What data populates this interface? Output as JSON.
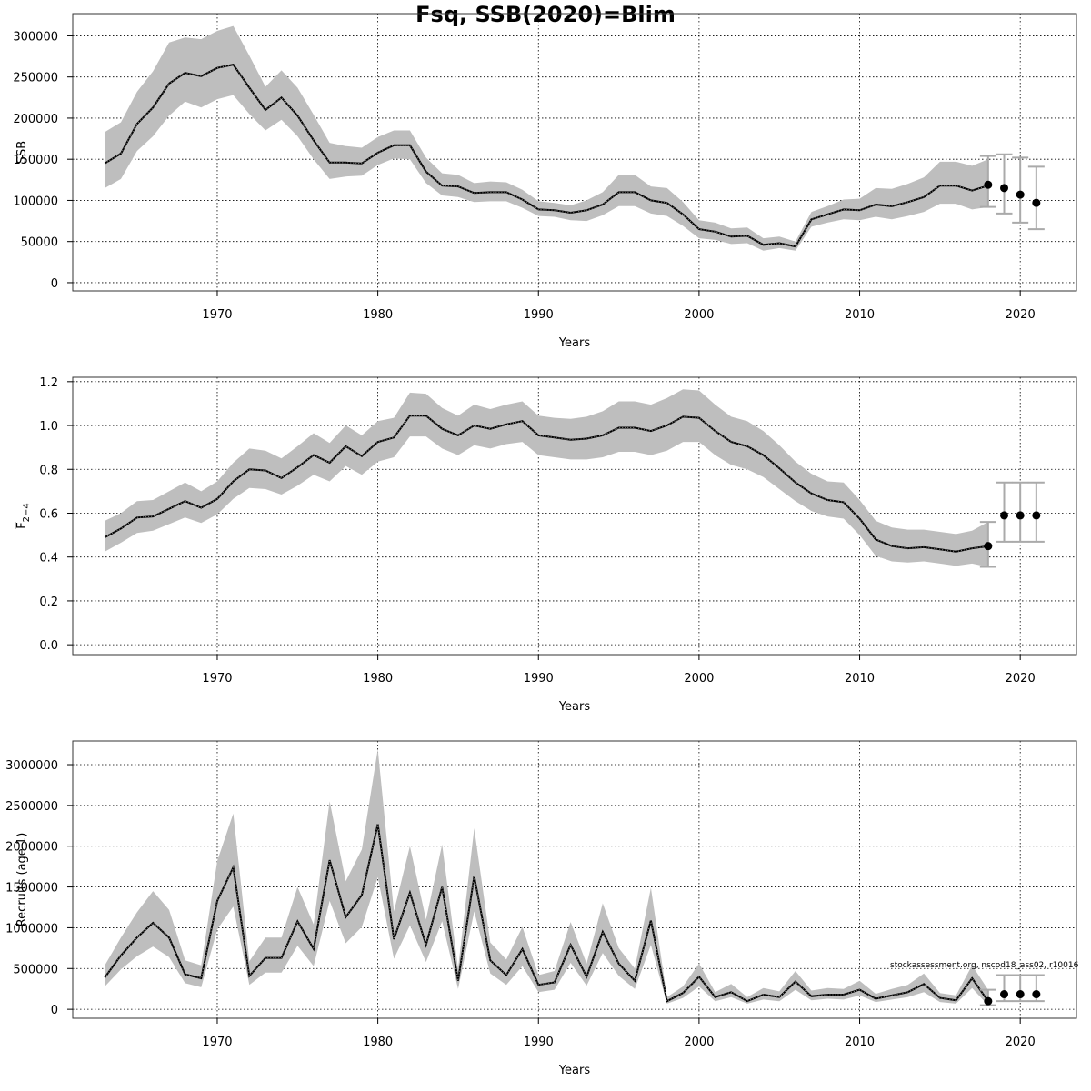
{
  "title": "Fsq, SSB(2020)=Blim",
  "credit": "stockassessment.org, nscod18_ass02, r10016",
  "chart_data": [
    {
      "type": "line",
      "ylabel": "SSB",
      "xlabel": "Years",
      "xlim": [
        1961,
        2023.5
      ],
      "ylim": [
        -10000,
        327000
      ],
      "xticks": [
        1970,
        1980,
        1990,
        2000,
        2010,
        2020
      ],
      "yticks": [
        0,
        50000,
        100000,
        150000,
        200000,
        250000,
        300000
      ],
      "ytick_labels": [
        "0",
        "50000",
        "100000",
        "150000",
        "200000",
        "250000",
        "300000"
      ],
      "grid": true,
      "x": [
        1963,
        1964,
        1965,
        1966,
        1967,
        1968,
        1969,
        1970,
        1971,
        1972,
        1973,
        1974,
        1975,
        1976,
        1977,
        1978,
        1979,
        1980,
        1981,
        1982,
        1983,
        1984,
        1985,
        1986,
        1987,
        1988,
        1989,
        1990,
        1991,
        1992,
        1993,
        1994,
        1995,
        1996,
        1997,
        1998,
        1999,
        2000,
        2001,
        2002,
        2003,
        2004,
        2005,
        2006,
        2007,
        2008,
        2009,
        2010,
        2011,
        2012,
        2013,
        2014,
        2015,
        2016,
        2017,
        2018
      ],
      "estimate": [
        145000,
        157000,
        193000,
        213000,
        242000,
        255000,
        251000,
        261000,
        265000,
        237000,
        210000,
        225000,
        203000,
        173000,
        146000,
        146000,
        145000,
        158000,
        167000,
        167000,
        135000,
        118000,
        117000,
        109000,
        110000,
        110000,
        101000,
        89000,
        88000,
        85000,
        88000,
        95000,
        110000,
        110000,
        100000,
        97000,
        83000,
        65000,
        62000,
        56000,
        57000,
        46000,
        48000,
        44000,
        77000,
        83000,
        89000,
        88000,
        95000,
        93000,
        98000,
        104000,
        118000,
        118000,
        112000,
        118000
      ],
      "upper": [
        183000,
        195000,
        232000,
        257000,
        292000,
        298000,
        296000,
        306000,
        312000,
        276000,
        238000,
        258000,
        237000,
        204000,
        170000,
        166000,
        164000,
        177000,
        185000,
        185000,
        152000,
        133000,
        131000,
        121000,
        123000,
        122000,
        113000,
        99000,
        97000,
        94000,
        100000,
        110000,
        131000,
        131000,
        117000,
        115000,
        98000,
        76000,
        73000,
        66000,
        67000,
        54000,
        56000,
        50000,
        86000,
        93000,
        101000,
        102000,
        115000,
        114000,
        120000,
        128000,
        147000,
        147000,
        142000,
        150000
      ],
      "lower": [
        115000,
        126000,
        160000,
        178000,
        203000,
        220000,
        213000,
        223000,
        228000,
        205000,
        185000,
        198000,
        178000,
        150000,
        126000,
        129000,
        130000,
        143000,
        151000,
        150000,
        121000,
        106000,
        104000,
        98000,
        99000,
        99000,
        91000,
        81000,
        80000,
        76000,
        75000,
        82000,
        93000,
        93000,
        84000,
        81000,
        69000,
        54000,
        52000,
        47000,
        48000,
        39000,
        42000,
        39000,
        68000,
        73000,
        77000,
        76000,
        80000,
        77000,
        81000,
        86000,
        96000,
        96000,
        89000,
        92000
      ],
      "forecast": [
        {
          "x": 2018,
          "value": 119000,
          "lower": 92000,
          "upper": 154000
        },
        {
          "x": 2019,
          "value": 115000,
          "lower": 84000,
          "upper": 156000
        },
        {
          "x": 2020,
          "value": 107000,
          "lower": 73000,
          "upper": 152000
        },
        {
          "x": 2021,
          "value": 97000,
          "lower": 65000,
          "upper": 141000
        }
      ]
    },
    {
      "type": "line",
      "ylabel": "F̄2−4",
      "ylabel_main": "F",
      "ylabel_sub": "2−4",
      "xlabel": "Years",
      "xlim": [
        1961,
        2023.5
      ],
      "ylim": [
        -0.045,
        1.22
      ],
      "xticks": [
        1970,
        1980,
        1990,
        2000,
        2010,
        2020
      ],
      "yticks": [
        0,
        0.2,
        0.4,
        0.6,
        0.8,
        1.0,
        1.2
      ],
      "ytick_labels": [
        "0.0",
        "0.2",
        "0.4",
        "0.6",
        "0.8",
        "1.0",
        "1.2"
      ],
      "grid": true,
      "x": [
        1963,
        1964,
        1965,
        1966,
        1967,
        1968,
        1969,
        1970,
        1971,
        1972,
        1973,
        1974,
        1975,
        1976,
        1977,
        1978,
        1979,
        1980,
        1981,
        1982,
        1983,
        1984,
        1985,
        1986,
        1987,
        1988,
        1989,
        1990,
        1991,
        1992,
        1993,
        1994,
        1995,
        1996,
        1997,
        1998,
        1999,
        2000,
        2001,
        2002,
        2003,
        2004,
        2005,
        2006,
        2007,
        2008,
        2009,
        2010,
        2011,
        2012,
        2013,
        2014,
        2015,
        2016,
        2017,
        2018
      ],
      "estimate": [
        0.49,
        0.53,
        0.58,
        0.585,
        0.62,
        0.655,
        0.625,
        0.665,
        0.745,
        0.8,
        0.795,
        0.76,
        0.81,
        0.865,
        0.83,
        0.905,
        0.86,
        0.925,
        0.945,
        1.045,
        1.045,
        0.985,
        0.955,
        1.0,
        0.985,
        1.005,
        1.02,
        0.955,
        0.945,
        0.935,
        0.94,
        0.955,
        0.99,
        0.99,
        0.975,
        1.0,
        1.04,
        1.035,
        0.975,
        0.925,
        0.905,
        0.865,
        0.805,
        0.74,
        0.69,
        0.66,
        0.65,
        0.575,
        0.48,
        0.45,
        0.44,
        0.445,
        0.435,
        0.425,
        0.44,
        0.45
      ],
      "upper": [
        0.565,
        0.6,
        0.655,
        0.66,
        0.7,
        0.74,
        0.7,
        0.745,
        0.83,
        0.895,
        0.885,
        0.85,
        0.905,
        0.965,
        0.92,
        1.0,
        0.955,
        1.02,
        1.035,
        1.15,
        1.145,
        1.08,
        1.045,
        1.095,
        1.075,
        1.095,
        1.11,
        1.045,
        1.035,
        1.03,
        1.04,
        1.065,
        1.11,
        1.11,
        1.095,
        1.125,
        1.165,
        1.16,
        1.095,
        1.04,
        1.02,
        0.975,
        0.91,
        0.835,
        0.78,
        0.745,
        0.74,
        0.66,
        0.565,
        0.535,
        0.525,
        0.525,
        0.515,
        0.505,
        0.52,
        0.56
      ],
      "lower": [
        0.425,
        0.465,
        0.51,
        0.52,
        0.55,
        0.58,
        0.555,
        0.595,
        0.665,
        0.715,
        0.71,
        0.685,
        0.725,
        0.775,
        0.745,
        0.815,
        0.775,
        0.835,
        0.855,
        0.95,
        0.95,
        0.895,
        0.865,
        0.91,
        0.895,
        0.915,
        0.925,
        0.865,
        0.855,
        0.845,
        0.845,
        0.855,
        0.88,
        0.88,
        0.865,
        0.885,
        0.925,
        0.925,
        0.865,
        0.82,
        0.8,
        0.765,
        0.71,
        0.655,
        0.61,
        0.585,
        0.575,
        0.5,
        0.405,
        0.38,
        0.375,
        0.38,
        0.37,
        0.36,
        0.37,
        0.355
      ],
      "forecast": [
        {
          "x": 2018,
          "value": 0.45,
          "lower": 0.355,
          "upper": 0.56
        },
        {
          "x": 2019,
          "value": 0.59,
          "lower": 0.47,
          "upper": 0.74
        },
        {
          "x": 2020,
          "value": 0.59,
          "lower": 0.47,
          "upper": 0.74
        },
        {
          "x": 2021,
          "value": 0.59,
          "lower": 0.47,
          "upper": 0.74
        }
      ]
    },
    {
      "type": "line",
      "ylabel": "Recruits (age 1)",
      "xlabel": "Years",
      "xlim": [
        1961,
        2023.5
      ],
      "ylim": [
        -110000,
        3290000
      ],
      "xticks": [
        1970,
        1980,
        1990,
        2000,
        2010,
        2020
      ],
      "yticks": [
        0,
        500000,
        1000000,
        1500000,
        2000000,
        2500000,
        3000000
      ],
      "ytick_labels": [
        "0",
        "500000",
        "1000000",
        "1500000",
        "2000000",
        "2500000",
        "3000000"
      ],
      "grid": true,
      "x": [
        1963,
        1964,
        1965,
        1966,
        1967,
        1968,
        1969,
        1970,
        1971,
        1972,
        1973,
        1974,
        1975,
        1976,
        1977,
        1978,
        1979,
        1980,
        1981,
        1982,
        1983,
        1984,
        1985,
        1986,
        1987,
        1988,
        1989,
        1990,
        1991,
        1992,
        1993,
        1994,
        1995,
        1996,
        1997,
        1998,
        1999,
        2000,
        2001,
        2002,
        2003,
        2004,
        2005,
        2006,
        2007,
        2008,
        2009,
        2010,
        2011,
        2012,
        2013,
        2014,
        2015,
        2016,
        2017,
        2018
      ],
      "estimate": [
        390000,
        660000,
        880000,
        1060000,
        880000,
        430000,
        380000,
        1330000,
        1740000,
        410000,
        630000,
        630000,
        1080000,
        740000,
        1830000,
        1130000,
        1400000,
        2270000,
        860000,
        1430000,
        790000,
        1500000,
        350000,
        1630000,
        600000,
        420000,
        740000,
        300000,
        330000,
        790000,
        400000,
        950000,
        560000,
        350000,
        1090000,
        100000,
        200000,
        400000,
        150000,
        210000,
        100000,
        180000,
        150000,
        340000,
        160000,
        180000,
        180000,
        240000,
        130000,
        170000,
        210000,
        310000,
        140000,
        110000,
        380000,
        100000
      ],
      "upper": [
        540000,
        880000,
        1190000,
        1450000,
        1220000,
        600000,
        540000,
        1820000,
        2400000,
        590000,
        880000,
        880000,
        1500000,
        1040000,
        2550000,
        1570000,
        1960000,
        3190000,
        1200000,
        2000000,
        1100000,
        2020000,
        500000,
        2220000,
        820000,
        610000,
        1010000,
        420000,
        470000,
        1070000,
        560000,
        1300000,
        750000,
        500000,
        1490000,
        150000,
        280000,
        560000,
        210000,
        310000,
        150000,
        260000,
        220000,
        470000,
        230000,
        260000,
        250000,
        350000,
        190000,
        250000,
        300000,
        440000,
        200000,
        170000,
        540000,
        240000
      ],
      "lower": [
        280000,
        490000,
        650000,
        770000,
        640000,
        320000,
        270000,
        980000,
        1260000,
        300000,
        450000,
        450000,
        780000,
        530000,
        1330000,
        810000,
        1010000,
        1620000,
        620000,
        1030000,
        580000,
        1080000,
        250000,
        1200000,
        440000,
        300000,
        530000,
        210000,
        240000,
        570000,
        290000,
        690000,
        410000,
        250000,
        790000,
        70000,
        140000,
        280000,
        100000,
        150000,
        70000,
        120000,
        100000,
        240000,
        110000,
        130000,
        120000,
        170000,
        90000,
        120000,
        150000,
        210000,
        90000,
        70000,
        260000,
        50000
      ],
      "forecast": [
        {
          "x": 2018,
          "value": 100000,
          "lower": 50000,
          "upper": 240000
        },
        {
          "x": 2019,
          "value": 185000,
          "lower": 100000,
          "upper": 420000
        },
        {
          "x": 2020,
          "value": 185000,
          "lower": 100000,
          "upper": 420000
        },
        {
          "x": 2021,
          "value": 185000,
          "lower": 100000,
          "upper": 420000
        }
      ]
    }
  ]
}
